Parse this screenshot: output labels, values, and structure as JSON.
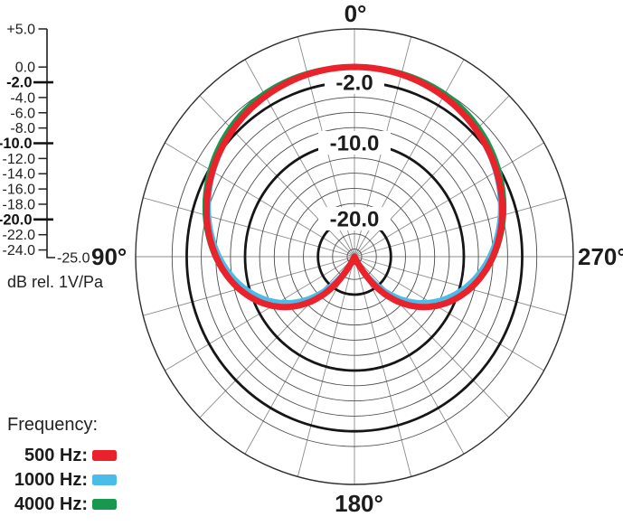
{
  "scale": {
    "unit_label": "dB rel. 1V/Pa",
    "end_label": "-25.0",
    "ticks": [
      {
        "label": "+5.0",
        "db": 5,
        "bold": false
      },
      {
        "label": "0.0",
        "db": 0,
        "bold": false
      },
      {
        "label": "-2.0",
        "db": -2,
        "bold": true
      },
      {
        "label": "-4.0",
        "db": -4,
        "bold": false
      },
      {
        "label": "-6.0",
        "db": -6,
        "bold": false
      },
      {
        "label": "-8.0",
        "db": -8,
        "bold": false
      },
      {
        "label": "-10.0",
        "db": -10,
        "bold": true
      },
      {
        "label": "-12.0",
        "db": -12,
        "bold": false
      },
      {
        "label": "-14.0",
        "db": -14,
        "bold": false
      },
      {
        "label": "-16.0",
        "db": -16,
        "bold": false
      },
      {
        "label": "-18.0",
        "db": -18,
        "bold": false
      },
      {
        "label": "-20.0",
        "db": -20,
        "bold": true
      },
      {
        "label": "-22.0",
        "db": -22,
        "bold": false
      },
      {
        "label": "-24.0",
        "db": -24,
        "bold": false
      }
    ]
  },
  "angle_labels": [
    {
      "label": "0°",
      "angle": 0
    },
    {
      "label": "90°",
      "angle": 90
    },
    {
      "label": "270°",
      "angle": 270
    },
    {
      "label": "180°",
      "angle": 180
    }
  ],
  "legend": {
    "title": "Frequency:",
    "items": [
      {
        "label": "500 Hz:",
        "color": "#e9222c"
      },
      {
        "label": "1000 Hz:",
        "color": "#49bce9"
      },
      {
        "label": "4000 Hz:",
        "color": "#17984e"
      }
    ]
  },
  "chart_data": {
    "type": "polar-line",
    "description": "Microphone cardioid polar pattern, response in dB vs angle",
    "angle_unit": "degrees",
    "zero_angle_position": "top",
    "angle_direction": "counterclockwise",
    "legend_position": "bottom-left",
    "r_axis": {
      "unit": "dB rel. 1V/Pa",
      "min_db": -25,
      "max_db": 5,
      "ring_step_db": 2,
      "rings_db": [
        0,
        -2,
        -4,
        -6,
        -8,
        -10,
        -12,
        -14,
        -16,
        -18,
        -20,
        -22,
        -24
      ],
      "bold_rings_db": [
        -2,
        -10,
        -20
      ],
      "ring_labels": [
        {
          "db": -2,
          "label": "-2.0"
        },
        {
          "db": -10,
          "label": "-10.0"
        },
        {
          "db": -20,
          "label": "-20.0"
        }
      ],
      "outer_ring_db": 5,
      "radial_step_deg": 15
    },
    "angles_deg": [
      0,
      5,
      10,
      15,
      20,
      25,
      30,
      35,
      40,
      45,
      50,
      55,
      60,
      65,
      70,
      75,
      80,
      85,
      90,
      95,
      100,
      105,
      110,
      115,
      120,
      125,
      130,
      135,
      140,
      145,
      150,
      155,
      160,
      165,
      170,
      175,
      180
    ],
    "series": [
      {
        "name": "4000 Hz",
        "color": "#17984e",
        "stroke_width": 4.5,
        "symmetric": true,
        "db": [
          0.05,
          0.08,
          0.08,
          0.07,
          0.03,
          -0.04,
          -0.15,
          -0.32,
          -0.56,
          -0.86,
          -1.21,
          -1.62,
          -2.08,
          -2.59,
          -3.14,
          -3.74,
          -4.38,
          -5.08,
          -5.82,
          -6.64,
          -7.53,
          -8.5,
          -9.56,
          -10.71,
          -11.98,
          -13.37,
          -14.92,
          -16.66,
          -18.61,
          -20.86,
          -23.48,
          -25,
          -25,
          -25,
          -25,
          -25,
          -25
        ]
      },
      {
        "name": "1000 Hz",
        "color": "#49bce9",
        "stroke_width": 4.5,
        "symmetric": true,
        "db": [
          0,
          -0.02,
          -0.07,
          -0.16,
          -0.29,
          -0.45,
          -0.66,
          -0.9,
          -1.18,
          -1.5,
          -1.86,
          -2.27,
          -2.72,
          -3.23,
          -3.78,
          -4.38,
          -5.05,
          -5.77,
          -6.56,
          -7.43,
          -8.37,
          -9.4,
          -10.53,
          -11.76,
          -13.12,
          -14.63,
          -16.31,
          -18.19,
          -20.31,
          -22.75,
          -25,
          -25,
          -25,
          -25,
          -25,
          -25,
          -25
        ]
      },
      {
        "name": "500 Hz",
        "color": "#e9222c",
        "stroke_width": 7,
        "symmetric": true,
        "db": [
          0,
          -0.02,
          -0.07,
          -0.15,
          -0.27,
          -0.42,
          -0.6,
          -0.82,
          -1.08,
          -1.38,
          -1.71,
          -2.08,
          -2.5,
          -2.96,
          -3.47,
          -4.02,
          -4.63,
          -5.3,
          -6.02,
          -6.81,
          -7.68,
          -8.62,
          -9.66,
          -10.79,
          -12.04,
          -13.42,
          -14.96,
          -16.69,
          -18.63,
          -20.87,
          -23.48,
          -25,
          -25,
          -25,
          -25,
          -25,
          -25
        ]
      }
    ]
  }
}
